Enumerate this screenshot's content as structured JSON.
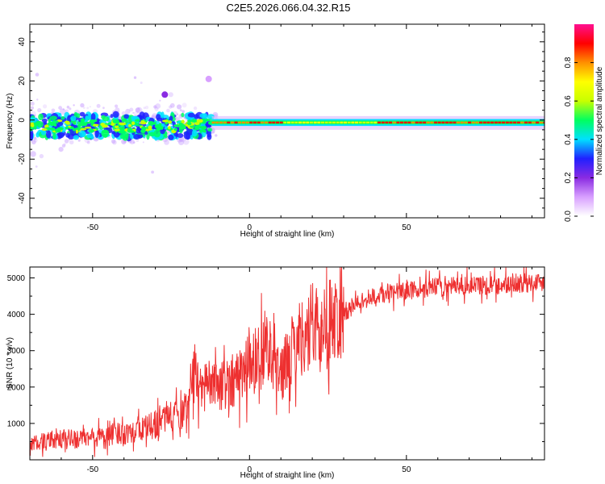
{
  "title": "C2E5.2026.066.04.32.R15",
  "chart_data": [
    {
      "type": "heatmap",
      "xlabel": "Height of straight line (km)",
      "ylabel": "Frequency (Hz)",
      "xlim": [
        -70,
        94
      ],
      "ylim": [
        -50,
        49
      ],
      "xticks": [
        -50,
        0,
        50
      ],
      "yticks": [
        -40,
        -20,
        0,
        20,
        40
      ],
      "colorbar": {
        "label": "Normalized spectral amplitude",
        "range": [
          0,
          1
        ],
        "ticks": [
          "0.0",
          "0.2",
          "0.4",
          "0.6",
          "0.8"
        ],
        "colors": [
          "#ffffff",
          "#d8a0ff",
          "#8a2be2",
          "#2020ff",
          "#00e0ff",
          "#00ff60",
          "#c8ff00",
          "#ffff00",
          "#ff9000",
          "#ff0000",
          "#ff1090"
        ]
      },
      "ridge": {
        "description_points": [
          {
            "x": -70,
            "y": -3,
            "amp": 0.3
          },
          {
            "x": -40,
            "y": -3,
            "amp": 0.35
          },
          {
            "x": -20,
            "y": -3,
            "amp": 0.4
          },
          {
            "x": -10,
            "y": -1,
            "amp": 0.9
          },
          {
            "x": 0,
            "y": -1,
            "amp": 0.95
          },
          {
            "x": 20,
            "y": -1,
            "amp": 0.7
          },
          {
            "x": 50,
            "y": -1,
            "amp": 0.85
          },
          {
            "x": 94,
            "y": -1,
            "amp": 0.95
          }
        ]
      }
    },
    {
      "type": "line",
      "xlabel": "Height of straight line (km)",
      "ylabel": "SNR (10 * v/v)",
      "xlim": [
        -70,
        94
      ],
      "ylim": [
        0,
        5300
      ],
      "xticks": [
        -50,
        0,
        50
      ],
      "yticks": [
        1000,
        2000,
        3000,
        4000,
        5000
      ],
      "color": "#ee3030",
      "x": [
        -70,
        -60,
        -50,
        -40,
        -30,
        -25,
        -20,
        -18,
        -15,
        -10,
        -5,
        0,
        3,
        5,
        8,
        10,
        15,
        20,
        25,
        30,
        35,
        40,
        50,
        60,
        70,
        80,
        94
      ],
      "y": [
        450,
        550,
        600,
        750,
        950,
        1200,
        1400,
        2300,
        2000,
        2000,
        2200,
        2600,
        2900,
        3100,
        3000,
        2300,
        3300,
        3550,
        3800,
        4000,
        4350,
        4500,
        4650,
        4750,
        4800,
        4800,
        4900
      ]
    }
  ]
}
